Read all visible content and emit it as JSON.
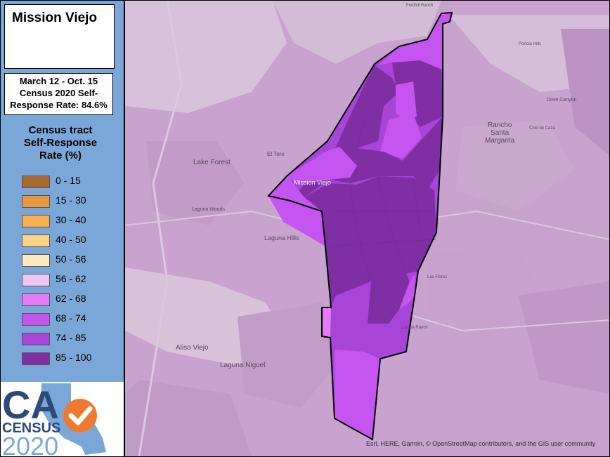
{
  "sidebar": {
    "title": "Mission Viejo",
    "subtitle_lines": [
      "March 12 - Oct. 15",
      "Census 2020 Self-",
      "Response Rate: 84.6%"
    ],
    "legend_title_lines": [
      "Census tract",
      "Self-Response",
      "Rate (%)"
    ],
    "legend": [
      {
        "label": "0 - 15",
        "color": "#a8692e"
      },
      {
        "label": "15 - 30",
        "color": "#e79942"
      },
      {
        "label": "30 - 40",
        "color": "#f6ae4e"
      },
      {
        "label": "40 - 50",
        "color": "#fbd286"
      },
      {
        "label": "50 - 56",
        "color": "#fde9bd"
      },
      {
        "label": "56 - 62",
        "color": "#ecc6f2"
      },
      {
        "label": "62 - 68",
        "color": "#e37cf5"
      },
      {
        "label": "68 - 74",
        "color": "#c455f0"
      },
      {
        "label": "74 - 85",
        "color": "#a645d8"
      },
      {
        "label": "85 - 100",
        "color": "#7f2fa3"
      }
    ]
  },
  "logo": {
    "ca": "CA",
    "census": "CENSUS",
    "year": "2020",
    "check_icon": "check-circle-icon"
  },
  "map": {
    "places": [
      "Lake Forest",
      "El Toro",
      "Mission Viejo",
      "Laguna Woods",
      "Laguna Hills",
      "Aliso Viejo",
      "Laguna Niguel",
      "Rancho",
      "Santa",
      "Margarita",
      "Dove Canyon",
      "Coto de Caza",
      "Las Flores",
      "Ladera Ranch",
      "Foothill Ranch",
      "Portola Hills"
    ],
    "attribution": "Esri, HERE, Garmin, © OpenStreetMap contributors, and the GIS user community"
  }
}
